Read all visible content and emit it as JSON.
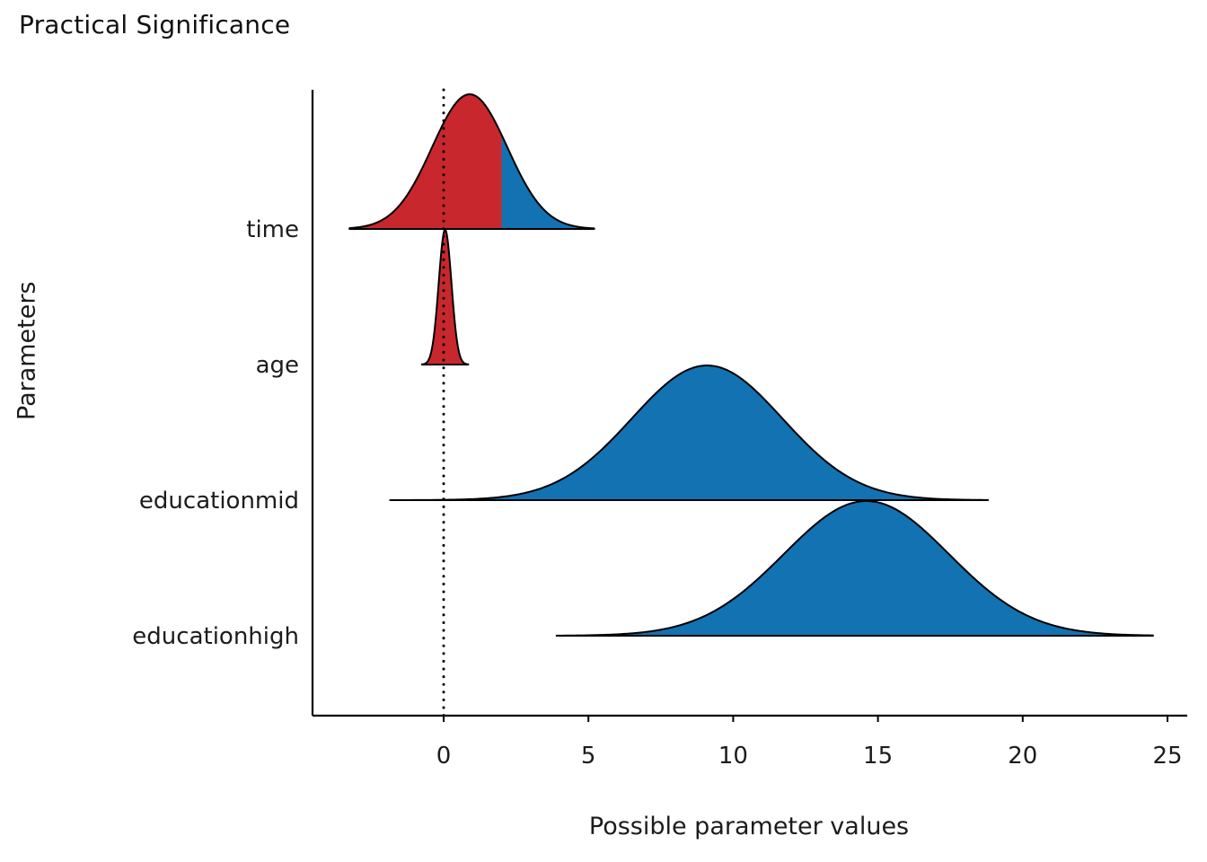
{
  "chart_data": {
    "type": "ridgeline",
    "title": "Practical Significance",
    "xlabel": "Possible parameter values",
    "ylabel": "Parameters",
    "x_ticks": [
      0,
      5,
      10,
      15,
      20,
      25
    ],
    "xlim": [
      -4.5,
      26.4
    ],
    "reference_line_x": 0,
    "grid": false,
    "legend": "none",
    "colors": {
      "significant": "#1272b2",
      "not_significant": "#c8272d",
      "outline": "#000000",
      "reference_line": "#000000",
      "axis": "#000000"
    },
    "rows": [
      {
        "label": "time",
        "center": 0.9,
        "sd": 1.3,
        "range": [
          -3.25,
          5.2
        ],
        "segments": [
          {
            "color_key": "not_significant",
            "from": -3.25,
            "to": 2.0
          },
          {
            "color_key": "significant",
            "from": 2.0,
            "to": 5.2
          }
        ]
      },
      {
        "label": "age",
        "center": 0.05,
        "sd": 0.22,
        "range": [
          -0.75,
          0.85
        ],
        "segments": [
          {
            "color_key": "not_significant",
            "from": -0.75,
            "to": 0.85
          }
        ]
      },
      {
        "label": "educationmid",
        "center": 9.1,
        "sd": 2.6,
        "range": [
          -1.85,
          18.8
        ],
        "segments": [
          {
            "color_key": "significant",
            "from": -1.85,
            "to": 18.8
          }
        ]
      },
      {
        "label": "educationhigh",
        "center": 14.6,
        "sd": 2.85,
        "range": [
          3.9,
          24.5
        ],
        "segments": [
          {
            "color_key": "significant",
            "from": 3.9,
            "to": 24.5
          }
        ]
      }
    ]
  }
}
